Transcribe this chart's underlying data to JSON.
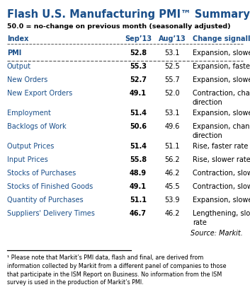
{
  "title1": "Flash U.S. Manufacturing PMI",
  "title_tm": "™",
  "title2": " Summary",
  "subtitle": "50.0 = no-change on previous month (seasonally adjusted)",
  "col_headers": [
    "Index",
    "Sep’13",
    "Aug’13",
    "Change signalled"
  ],
  "rows": [
    {
      "index": "PMI",
      "sep": "52.8",
      "aug": "53.1",
      "change": "Expansion, slower rate",
      "pmi_row": true
    },
    {
      "index": "Output",
      "sep": "55.3",
      "aug": "52.5",
      "change": "Expansion, faster rate",
      "pmi_row": false
    },
    {
      "index": "New Orders",
      "sep": "52.7",
      "aug": "55.7",
      "change": "Expansion, slower rate",
      "pmi_row": false
    },
    {
      "index": "New Export Orders",
      "sep": "49.1",
      "aug": "52.0",
      "change": "Contraction, change in\ndirection",
      "pmi_row": false
    },
    {
      "index": "Employment",
      "sep": "51.4",
      "aug": "53.1",
      "change": "Expansion, slower rate",
      "pmi_row": false
    },
    {
      "index": "Backlogs of Work",
      "sep": "50.6",
      "aug": "49.6",
      "change": "Expansion, change in\ndirection",
      "pmi_row": false
    },
    {
      "index": "Output Prices",
      "sep": "51.4",
      "aug": "51.1",
      "change": "Rise, faster rate",
      "pmi_row": false
    },
    {
      "index": "Input Prices",
      "sep": "55.8",
      "aug": "56.2",
      "change": "Rise, slower rate",
      "pmi_row": false
    },
    {
      "index": "Stocks of Purchases",
      "sep": "48.9",
      "aug": "46.2",
      "change": "Contraction, slower rate",
      "pmi_row": false
    },
    {
      "index": "Stocks of Finished Goods",
      "sep": "49.1",
      "aug": "45.5",
      "change": "Contraction, slower rate",
      "pmi_row": false
    },
    {
      "index": "Quantity of Purchases",
      "sep": "51.1",
      "aug": "53.9",
      "change": "Expansion, slower rate",
      "pmi_row": false
    },
    {
      "index": "Suppliers' Delivery Times",
      "sep": "46.7",
      "aug": "46.2",
      "change": "Lengthening, slower\nrate",
      "pmi_row": false
    }
  ],
  "source_text": "Source: Markit.",
  "footnote": "¹ Please note that Markit’s PMI data, flash and final, are derived from\ninformation collected by Markit from a different panel of companies to those\nthat participate in the ISM Report on Business. No information from the ISM\nsurvey is used in the production of Markit’s PMI.",
  "title_color": "#1a4f8a",
  "header_color": "#1a4f8a",
  "index_color": "#1a4f8a",
  "text_color": "#000000",
  "bg_color": "#ffffff",
  "line_color": "#555555"
}
